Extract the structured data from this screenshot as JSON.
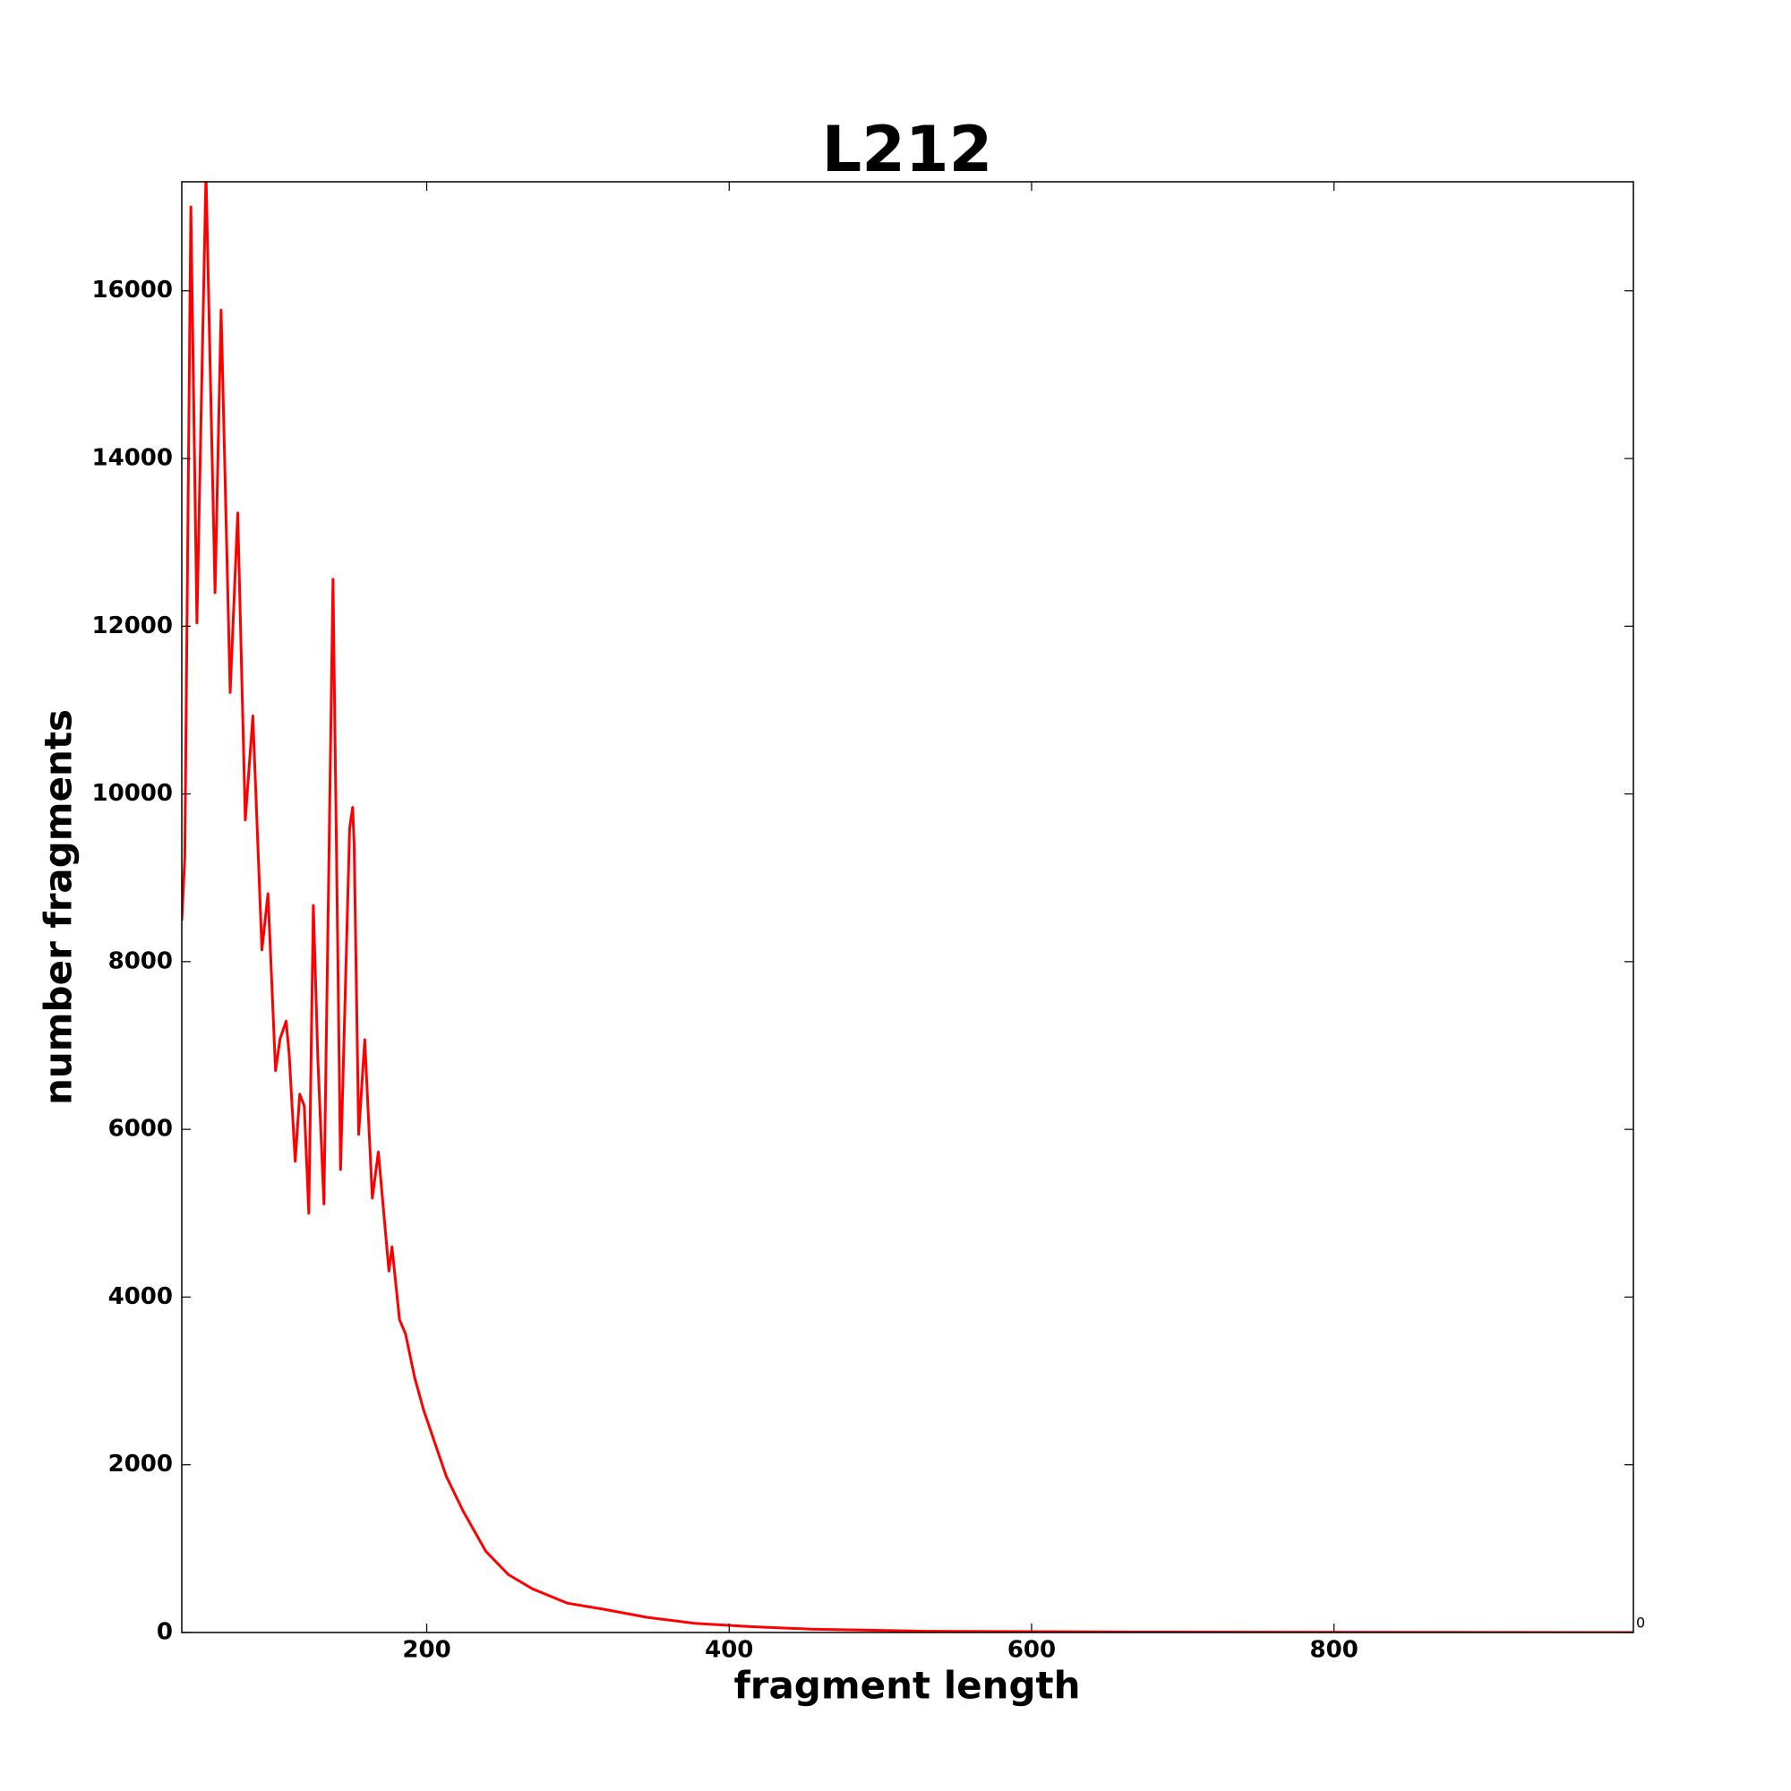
{
  "chart_data": {
    "type": "line",
    "title": "L212",
    "x_label": "fragment length",
    "y_label": "number fragments",
    "annotation": "0",
    "xlim": [
      38,
      998
    ],
    "ylim": [
      0,
      17300
    ],
    "xticks": [
      200,
      400,
      600,
      800
    ],
    "yticks": [
      0,
      2000,
      4000,
      6000,
      8000,
      10000,
      12000,
      14000,
      16000
    ],
    "grid": false,
    "series": [
      {
        "color": "#ff0000",
        "x": [
          38,
          40,
          44,
          48,
          54,
          60,
          64,
          70,
          75,
          80,
          85,
          91,
          95,
          100,
          103,
          107,
          109,
          113,
          116,
          119,
          122,
          125,
          128,
          132,
          138,
          143,
          149,
          151,
          152,
          155,
          159,
          164,
          168,
          175,
          177,
          182,
          186,
          192,
          198,
          205,
          213,
          224,
          239,
          254,
          270,
          293,
          316,
          346,
          377,
          415,
          454,
          530,
          684,
          998
        ],
        "values": [
          8490,
          9250,
          17000,
          12040,
          17400,
          12400,
          15770,
          11210,
          13350,
          9690,
          10930,
          8140,
          8810,
          6700,
          7080,
          7290,
          6900,
          5620,
          6420,
          6280,
          5000,
          8670,
          6830,
          5110,
          12560,
          5520,
          9590,
          9840,
          9390,
          5940,
          7070,
          5180,
          5730,
          4310,
          4600,
          3730,
          3560,
          3040,
          2650,
          2280,
          1860,
          1450,
          970,
          690,
          520,
          350,
          280,
          180,
          110,
          70,
          40,
          15,
          5,
          0
        ]
      }
    ]
  }
}
